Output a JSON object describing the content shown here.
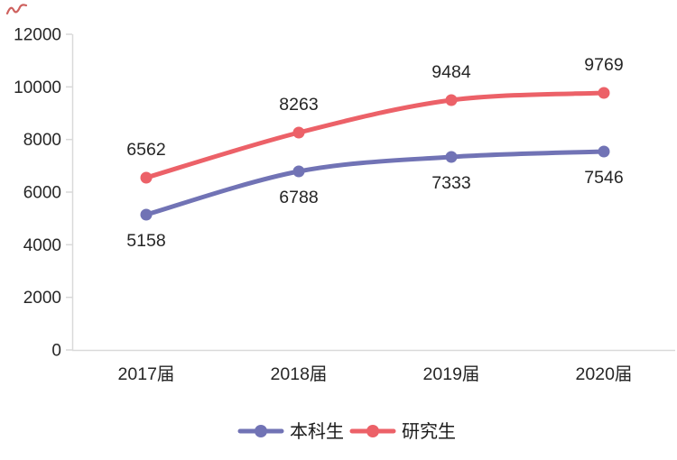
{
  "chart_data": {
    "type": "line",
    "title": "",
    "xlabel": "",
    "ylabel": "",
    "categories": [
      "2017届",
      "2018届",
      "2019届",
      "2020届"
    ],
    "series": [
      {
        "name": "本科生",
        "color": "#7173b5",
        "values": [
          5158,
          6788,
          7333,
          7546
        ],
        "marker": "circle",
        "data_label_position": "below"
      },
      {
        "name": "研究生",
        "color": "#ec6168",
        "values": [
          6562,
          8263,
          9484,
          9769
        ],
        "marker": "circle",
        "data_label_position": "above"
      }
    ],
    "ylim": [
      0,
      12000
    ],
    "yticks": [
      0,
      2000,
      4000,
      6000,
      8000,
      10000,
      12000
    ],
    "ytick_labels": [
      "0",
      "2000",
      "4000",
      "6000",
      "8000",
      "10000",
      "12000"
    ],
    "grid": false,
    "smoothed": true,
    "data_labels": true,
    "legend": {
      "position": "bottom",
      "entries": [
        "本科生",
        "研究生"
      ]
    },
    "colors": {
      "axis": "#d9d9d9",
      "text": "#262626",
      "legend_text": "#1a1a1a",
      "background": "#ffffff"
    }
  },
  "decoration": {
    "top_left_mark": {
      "type": "red-scribble",
      "color": "#c9504d"
    }
  }
}
